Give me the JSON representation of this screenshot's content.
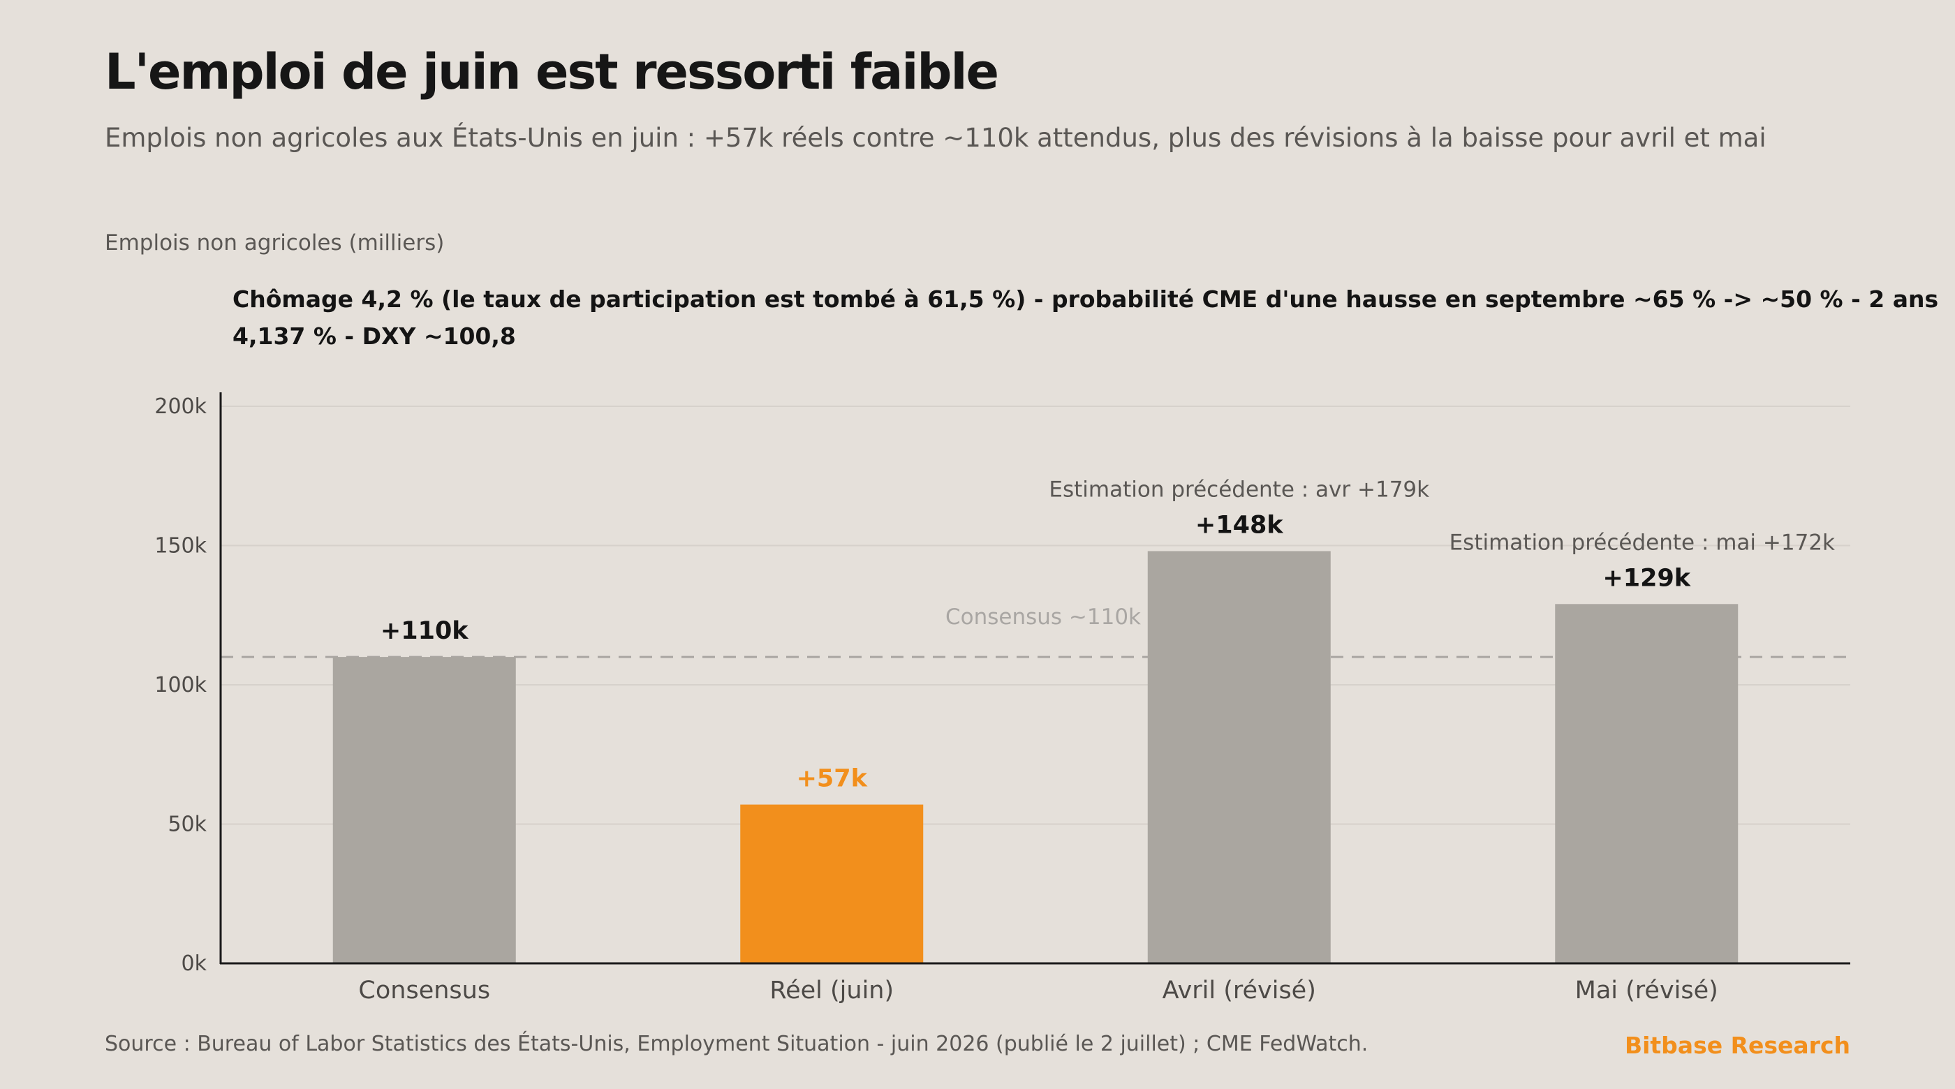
{
  "header": {
    "title": "L'emploi de juin est ressorti faible",
    "subtitle": "Emplois non agricoles aux États-Unis en juin : +57k réels contre ~110k attendus, plus des révisions à la baisse pour avril et mai",
    "unit_label": "Emplois non agricoles (milliers)",
    "annotation_line1": "Chômage 4,2 % (le taux de participation est tombé à 61,5 %) - probabilité CME d'une hausse en septembre ~65 % -> ~50 % - 2 ans",
    "annotation_line2": "4,137 % - DXY ~100,8"
  },
  "footer": {
    "source": "Source : Bureau of Labor Statistics des États-Unis, Employment Situation - juin 2026 (publié le 2 juillet) ; CME FedWatch.",
    "brand": "Bitbase Research"
  },
  "colors": {
    "background": "#e5e0da",
    "bar_default": "#aaa6a0",
    "bar_highlight": "#f28f1c",
    "axis": "#1a1a1a",
    "grid": "#d6d1cb",
    "reference_line": "#aaa6a2"
  },
  "chart_data": {
    "type": "bar",
    "categories": [
      "Consensus",
      "Réel (juin)",
      "Avril (révisé)",
      "Mai (révisé)"
    ],
    "values": [
      110,
      57,
      148,
      129
    ],
    "value_labels": [
      "+110k",
      "+57k",
      "+148k",
      "+129k"
    ],
    "highlight_index": 1,
    "ylim": [
      0,
      200
    ],
    "yticks": [
      0,
      50,
      100,
      150,
      200
    ],
    "ytick_labels": [
      "0k",
      "50k",
      "100k",
      "150k",
      "200k"
    ],
    "grid": true,
    "reference_line": {
      "value": 110,
      "label": "Consensus ~110k"
    },
    "notes": [
      {
        "category_index": 2,
        "text": "Estimation précédente : avr +179k"
      },
      {
        "category_index": 3,
        "text": "Estimation précédente : mai +172k"
      }
    ]
  }
}
